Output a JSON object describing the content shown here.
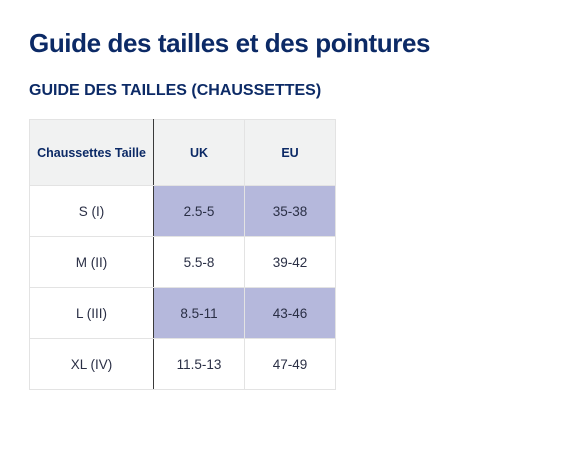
{
  "page": {
    "title": "Guide des tailles et des pointures",
    "subtitle": "GUIDE DES TAILLES (CHAUSSETTES)"
  },
  "table": {
    "headers": [
      "Chaussettes Taille",
      "UK",
      "EU"
    ],
    "rows": [
      {
        "size": "S (I)",
        "uk": "2.5-5",
        "eu": "35-38",
        "highlighted": true
      },
      {
        "size": "M (II)",
        "uk": "5.5-8",
        "eu": "39-42",
        "highlighted": false
      },
      {
        "size": "L (III)",
        "uk": "8.5-11",
        "eu": "43-46",
        "highlighted": true
      },
      {
        "size": "XL (IV)",
        "uk": "11.5-13",
        "eu": "47-49",
        "highlighted": false
      }
    ]
  },
  "colors": {
    "heading": "#0c2a66",
    "header_bg": "#f1f2f2",
    "highlight_bg": "#b5b8dc",
    "border": "#e3e3e3"
  }
}
